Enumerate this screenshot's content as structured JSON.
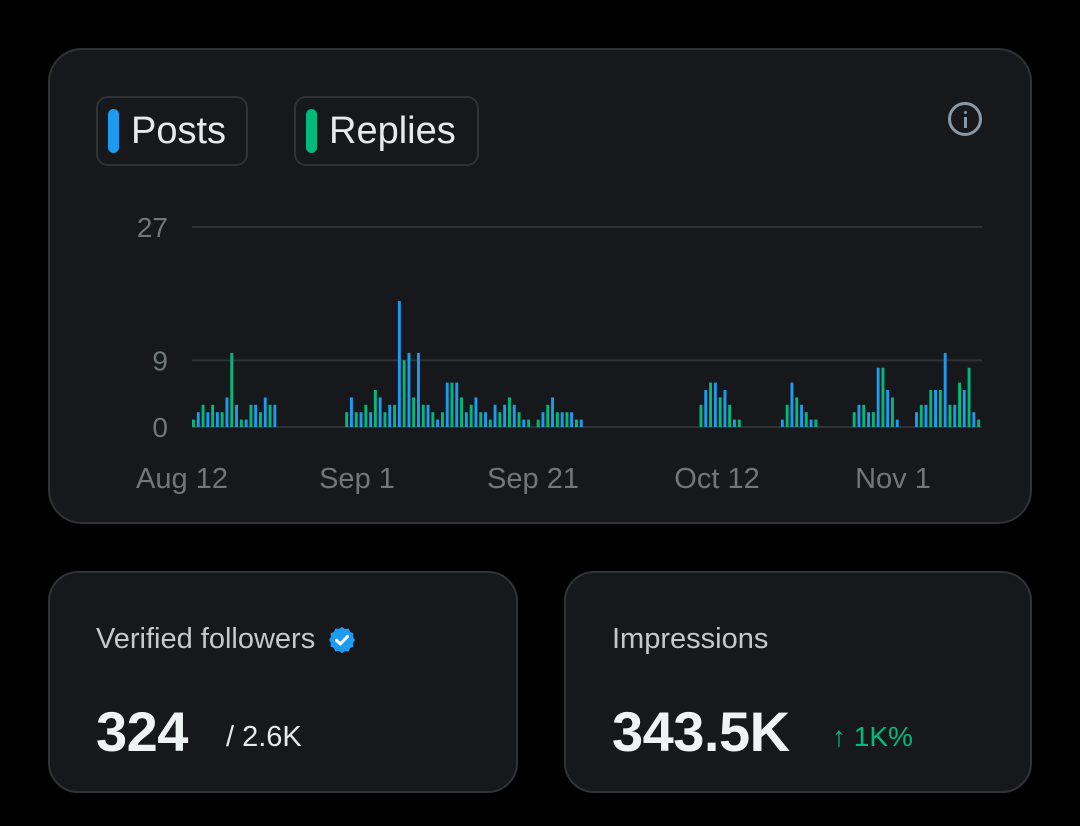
{
  "chart_card": {
    "legend": [
      {
        "label": "Posts",
        "color": "#1d9bf0"
      },
      {
        "label": "Replies",
        "color": "#00ba7c"
      }
    ],
    "info_icon": "info-icon"
  },
  "chart_data": {
    "type": "bar",
    "x_labels": [
      "Aug 12",
      "Sep 1",
      "Sep 21",
      "Oct 12",
      "Nov 1"
    ],
    "y_ticks": [
      0,
      9,
      27
    ],
    "ylim": [
      0,
      27
    ],
    "grid": true,
    "series": [
      {
        "name": "Posts",
        "color": "#1d9bf0",
        "values": [
          1,
          2,
          3,
          2,
          3,
          2,
          2,
          4,
          10,
          3,
          1,
          1,
          3,
          3,
          2,
          4,
          3,
          3,
          0,
          0,
          0,
          0,
          0,
          0,
          0,
          0,
          0,
          0,
          0,
          0,
          0,
          0,
          2,
          4,
          2,
          2,
          3,
          2,
          5,
          4,
          2,
          3,
          3,
          17,
          9,
          10,
          4,
          10,
          3,
          3,
          2,
          1,
          2,
          6,
          6,
          6,
          4,
          2,
          3,
          4,
          2,
          2,
          1,
          3,
          2,
          3,
          4,
          3,
          2,
          1,
          1,
          0,
          1,
          2,
          3,
          4,
          2,
          2,
          2,
          2,
          1,
          1,
          0,
          0,
          0,
          0,
          0,
          0,
          0,
          0,
          0,
          0,
          0,
          0,
          0,
          0,
          0,
          0,
          0,
          0,
          0,
          0,
          0,
          0,
          0,
          0,
          3,
          5,
          6,
          6,
          4,
          5,
          3,
          1,
          1,
          0,
          0,
          0,
          0,
          0,
          0,
          0,
          0,
          1,
          3,
          6,
          4,
          3,
          2,
          1,
          1,
          0,
          0,
          0,
          0,
          0,
          0,
          0,
          2,
          3,
          3,
          2,
          2,
          8,
          8,
          5,
          4,
          1,
          0,
          0,
          0,
          2,
          3,
          3,
          5,
          5,
          5,
          10,
          3,
          3,
          6,
          5,
          8,
          2,
          1
        ],
        "display": "interleaved"
      },
      {
        "name": "Replies",
        "color": "#00ba7c"
      }
    ]
  },
  "stats": {
    "verified_followers": {
      "title": "Verified followers",
      "value": "324",
      "total": "/ 2.6K",
      "badge_icon": "verified-badge-icon",
      "badge_color": "#1d9bf0"
    },
    "impressions": {
      "title": "Impressions",
      "value": "343.5K",
      "change": "↑ 1K%",
      "change_color": "#00ba7c"
    }
  }
}
